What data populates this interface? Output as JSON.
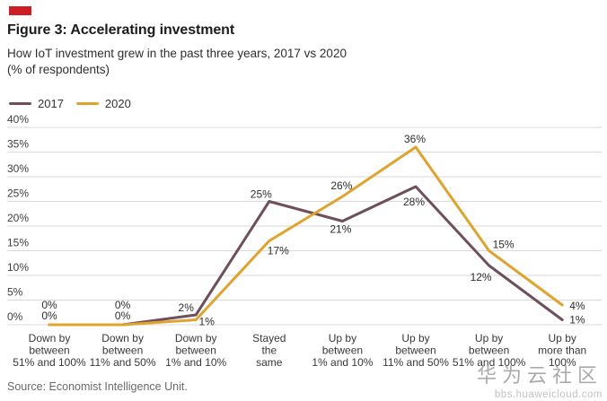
{
  "accent": {
    "kicker_red": "#cd1e23"
  },
  "header": {
    "title": "Figure 3: Accelerating investment",
    "subtitle_line1": "How IoT investment grew in the past three years, 2017 vs 2020",
    "subtitle_line2": "(% of respondents)"
  },
  "legend": {
    "items": [
      {
        "label": "2017",
        "color": "#6E4F5D"
      },
      {
        "label": "2020",
        "color": "#E0A32E"
      }
    ]
  },
  "chart_data": {
    "type": "line",
    "title": "Figure 3: Accelerating investment",
    "subtitle": "How IoT investment grew in the past three years, 2017 vs 2020 (% of respondents)",
    "categories": [
      [
        "Down by",
        "between",
        "51% and 100%"
      ],
      [
        "Down by",
        "between",
        "11% and 50%"
      ],
      [
        "Down by",
        "between",
        "1% and 10%"
      ],
      [
        "Stayed",
        "the",
        "same"
      ],
      [
        "Up by",
        "between",
        "1% and 10%"
      ],
      [
        "Up by",
        "between",
        "11% and 50%"
      ],
      [
        "Up by",
        "between",
        "51% and 100%"
      ],
      [
        "Up by",
        "more than",
        "100%"
      ]
    ],
    "series": [
      {
        "name": "2017",
        "color": "#6E4F5D",
        "values": [
          0,
          0,
          2,
          25,
          21,
          28,
          12,
          1
        ]
      },
      {
        "name": "2020",
        "color": "#E0A32E",
        "values": [
          0,
          0,
          1,
          17,
          26,
          36,
          15,
          4
        ]
      }
    ],
    "ylim": [
      0,
      40
    ],
    "ytick_step": 5,
    "ytick_suffix": "%",
    "grid": true,
    "legend_position": "top-left",
    "point_label_suffix": "%"
  },
  "source": {
    "text": "Source: Economist Intelligence Unit."
  },
  "watermark": {
    "text_cn": "华为云社区",
    "url": "bbs.huaweicloud.com"
  }
}
